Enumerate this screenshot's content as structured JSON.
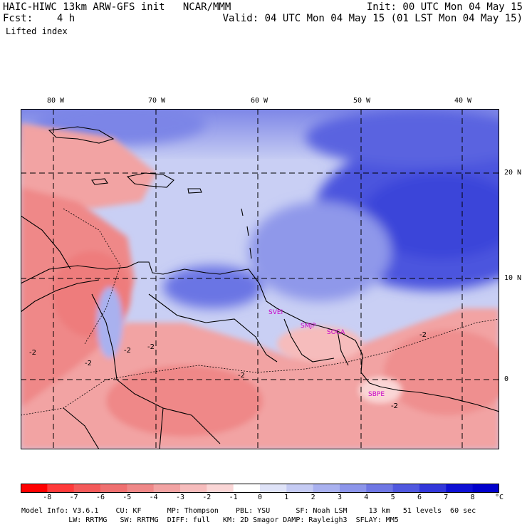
{
  "header": {
    "line1_left": "HAIC-HIWC 13km ARW-GFS init   NCAR/MMM",
    "line1_right": "Init: 00 UTC Mon 04 May 15",
    "line2_left": "Fcst:    4 h",
    "line2_right": "Valid: 04 UTC Mon 04 May 15 (01 LST Mon 04 May 15)",
    "field_name": "Lifted index"
  },
  "axes": {
    "lon_labels": [
      "80 W",
      "70 W",
      "60 W",
      "50 W",
      "40 W"
    ],
    "lat_labels": [
      "20 N",
      "10 N",
      "0"
    ]
  },
  "contour_labels": [
    "-2",
    "-2",
    "-2",
    "-2",
    "-2",
    "-2",
    "-2"
  ],
  "station_labels": [
    "SVEI",
    "SMJP",
    "SOCA",
    "SBPE"
  ],
  "colorbar": {
    "values": [
      "-8",
      "-7",
      "-6",
      "-5",
      "-4",
      "-3",
      "-2",
      "-1",
      "0",
      "1",
      "2",
      "3",
      "4",
      "5",
      "6",
      "7",
      "8"
    ],
    "unit": "°C",
    "colors": [
      "#ff0000",
      "#ff3a3a",
      "#f45a5a",
      "#ef7070",
      "#ef8888",
      "#f2a3a3",
      "#f6bcbc",
      "#fad6d6",
      "#ffffff",
      "#dfe3f8",
      "#c5cbf3",
      "#a9b1ef",
      "#8c95ea",
      "#6f77e4",
      "#5058df",
      "#3237da",
      "#0e10d4"
    ]
  },
  "model_info": {
    "line1": "Model Info: V3.6.1    CU: KF      MP: Thompson    PBL: YSU      SF: Noah LSM     13 km   51 levels  60 sec",
    "line2": "           LW: RRTMG   SW: RRTMG  DIFF: full   KM: 2D Smagor DAMP: Rayleigh3  SFLAY: MM5"
  }
}
